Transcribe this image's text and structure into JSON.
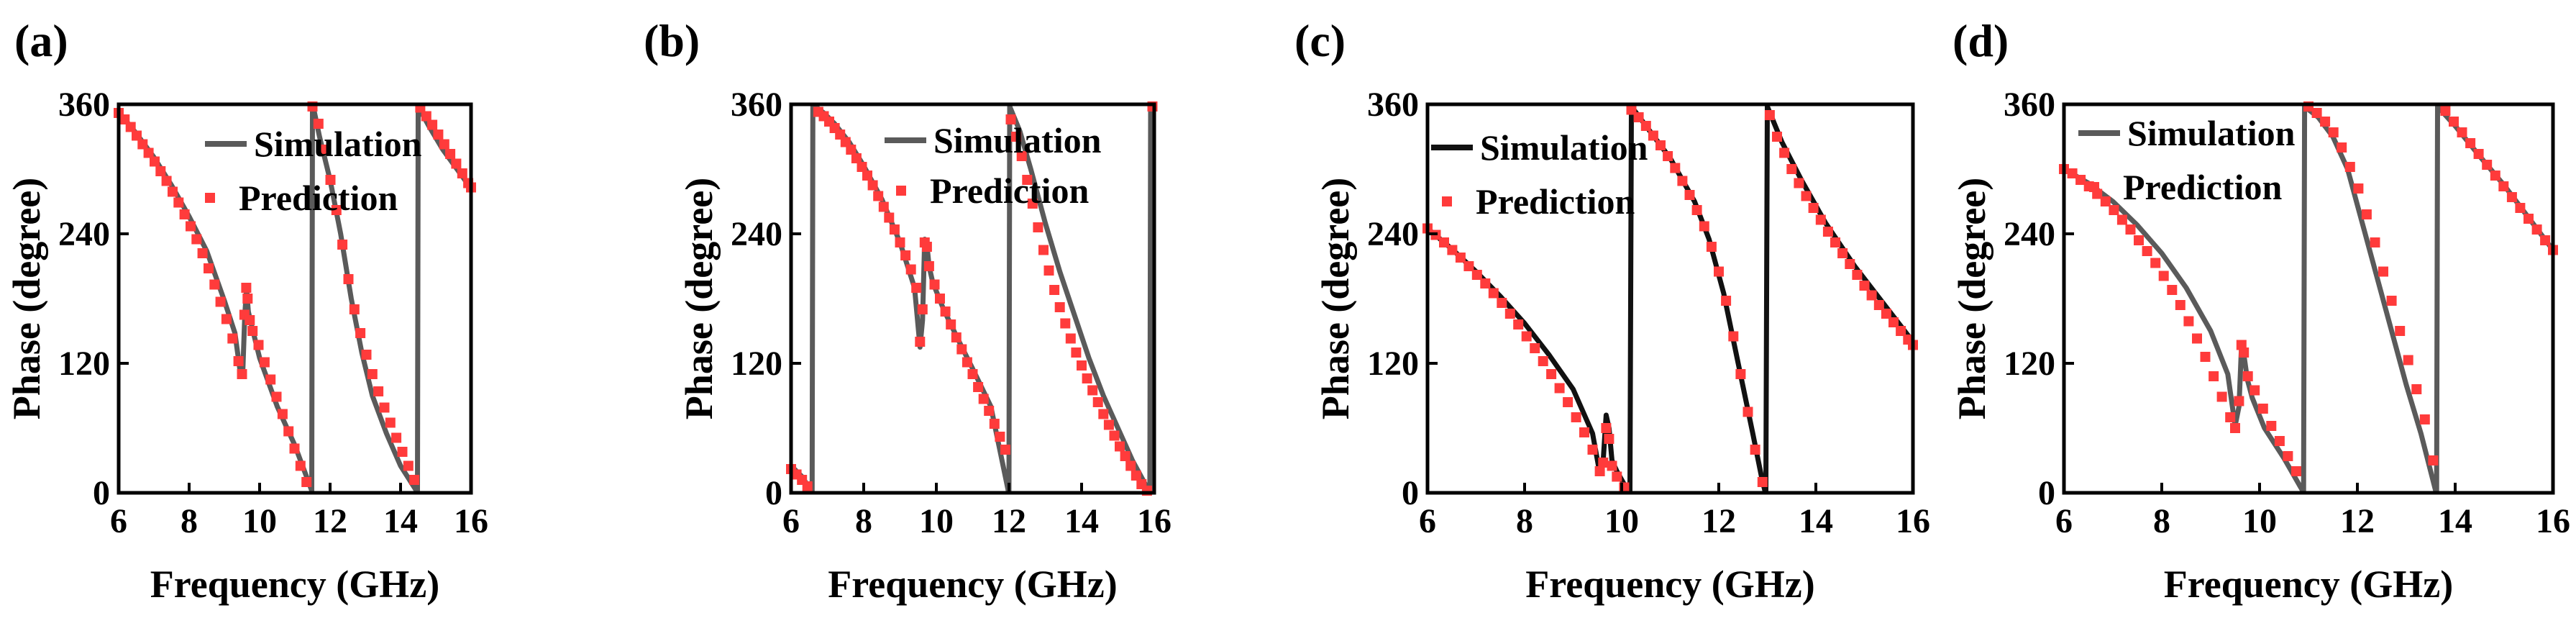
{
  "colors": {
    "simulation": "#5a5a5a",
    "simulation_c": "#111111",
    "prediction": "#ff3b3b"
  },
  "chart_data": [
    {
      "type": "line",
      "panel_label": "(a)",
      "xlabel": "Frequency (GHz)",
      "ylabel": "Phase (degree)",
      "xlim": [
        6,
        16
      ],
      "ylim": [
        0,
        360
      ],
      "xticks": [
        6,
        8,
        10,
        12,
        14,
        16
      ],
      "yticks": [
        0,
        120,
        240,
        360
      ],
      "legend": [
        "Simulation",
        "Prediction"
      ],
      "series": [
        {
          "name": "Simulation",
          "x": [
            6.0,
            6.5,
            7.0,
            7.5,
            8.0,
            8.5,
            9.0,
            9.3,
            9.45,
            9.52,
            9.58,
            9.63,
            9.68,
            9.75,
            9.85,
            10.0,
            10.5,
            11.0,
            11.48,
            11.5,
            11.52,
            11.7,
            12.0,
            12.3,
            12.6,
            12.9,
            13.2,
            13.6,
            14.0,
            14.45,
            14.48,
            14.5,
            14.8,
            15.2,
            15.6,
            16.0
          ],
          "y": [
            353,
            333,
            311,
            285,
            256,
            224,
            178,
            148,
            112,
            110,
            165,
            190,
            168,
            158,
            145,
            125,
            80,
            44,
            2,
            360,
            358,
            330,
            290,
            240,
            180,
            130,
            90,
            55,
            25,
            2,
            2,
            358,
            340,
            318,
            300,
            282
          ]
        },
        {
          "name": "Prediction",
          "x": [
            6.0,
            6.17,
            6.34,
            6.51,
            6.68,
            6.85,
            7.02,
            7.19,
            7.36,
            7.53,
            7.7,
            7.87,
            8.04,
            8.21,
            8.38,
            8.55,
            8.72,
            8.89,
            9.06,
            9.23,
            9.4,
            9.5,
            9.57,
            9.62,
            9.66,
            9.72,
            9.8,
            9.97,
            10.14,
            10.31,
            10.48,
            10.65,
            10.82,
            10.99,
            11.16,
            11.33,
            11.5,
            11.67,
            11.84,
            12.01,
            12.18,
            12.35,
            12.52,
            12.69,
            12.86,
            13.03,
            13.2,
            13.37,
            13.54,
            13.71,
            13.88,
            14.05,
            14.22,
            14.39,
            14.56,
            14.73,
            14.9,
            15.07,
            15.24,
            15.41,
            15.58,
            15.75,
            15.92,
            16.0
          ],
          "y": [
            352,
            346,
            339,
            331,
            323,
            315,
            307,
            298,
            289,
            279,
            269,
            258,
            247,
            235,
            222,
            208,
            193,
            177,
            161,
            143,
            122,
            110,
            165,
            190,
            180,
            160,
            150,
            137,
            121,
            105,
            89,
            73,
            57,
            41,
            25,
            10,
            358,
            342,
            318,
            290,
            262,
            230,
            198,
            170,
            148,
            128,
            110,
            94,
            79,
            65,
            51,
            38,
            25,
            12,
            357,
            349,
            341,
            332,
            323,
            314,
            305,
            296,
            287,
            283
          ]
        }
      ]
    },
    {
      "type": "line",
      "panel_label": "(b)",
      "xlabel": "Frequency (GHz)",
      "ylabel": "Phase (degree)",
      "xlim": [
        6,
        16
      ],
      "ylim": [
        0,
        360
      ],
      "xticks": [
        6,
        8,
        10,
        12,
        14,
        16
      ],
      "yticks": [
        0,
        120,
        240,
        360
      ],
      "legend": [
        "Simulation",
        "Prediction"
      ],
      "series": [
        {
          "name": "Simulation",
          "x": [
            6.0,
            6.3,
            6.55,
            6.58,
            6.6,
            6.9,
            7.2,
            7.6,
            8.0,
            8.5,
            9.0,
            9.4,
            9.55,
            9.62,
            9.68,
            9.74,
            9.8,
            9.9,
            10.2,
            10.6,
            11.0,
            11.5,
            11.98,
            12.0,
            12.02,
            12.3,
            12.6,
            13.0,
            13.4,
            13.8,
            14.2,
            14.6,
            15.0,
            15.4,
            15.85,
            15.88,
            15.9,
            16.0
          ],
          "y": [
            25,
            15,
            2,
            2,
            360,
            352,
            342,
            325,
            303,
            272,
            232,
            190,
            135,
            160,
            235,
            230,
            210,
            195,
            170,
            142,
            115,
            80,
            2,
            2,
            358,
            335,
            300,
            250,
            205,
            165,
            125,
            90,
            60,
            30,
            2,
            2,
            358,
            354
          ]
        },
        {
          "name": "Prediction",
          "x": [
            6.0,
            6.15,
            6.3,
            6.45,
            6.75,
            6.9,
            7.05,
            7.2,
            7.35,
            7.5,
            7.65,
            7.8,
            7.95,
            8.1,
            8.25,
            8.4,
            8.55,
            8.7,
            8.85,
            9.0,
            9.15,
            9.3,
            9.45,
            9.55,
            9.62,
            9.68,
            9.74,
            9.8,
            9.95,
            10.1,
            10.25,
            10.4,
            10.55,
            10.7,
            10.85,
            11.0,
            11.15,
            11.3,
            11.45,
            11.6,
            11.75,
            11.9,
            12.05,
            12.2,
            12.35,
            12.5,
            12.65,
            12.8,
            12.95,
            13.1,
            13.25,
            13.4,
            13.55,
            13.7,
            13.85,
            14.0,
            14.15,
            14.3,
            14.45,
            14.6,
            14.75,
            14.9,
            15.05,
            15.2,
            15.35,
            15.5,
            15.65,
            15.8,
            15.95
          ],
          "y": [
            22,
            17,
            12,
            6,
            353,
            349,
            344,
            338,
            332,
            325,
            318,
            310,
            302,
            294,
            285,
            275,
            265,
            255,
            244,
            232,
            220,
            207,
            190,
            140,
            170,
            232,
            228,
            210,
            193,
            180,
            168,
            156,
            144,
            133,
            121,
            110,
            98,
            87,
            76,
            64,
            52,
            40,
            346,
            330,
            312,
            290,
            268,
            246,
            225,
            206,
            188,
            172,
            157,
            143,
            130,
            118,
            106,
            95,
            84,
            73,
            63,
            53,
            43,
            34,
            25,
            16,
            8,
            2,
            358
          ]
        }
      ]
    },
    {
      "type": "line",
      "panel_label": "(c)",
      "xlabel": "Frequency (GHz)",
      "ylabel": "Phase (degree)",
      "xlim": [
        6,
        16
      ],
      "ylim": [
        0,
        360
      ],
      "xticks": [
        6,
        8,
        10,
        12,
        14,
        16
      ],
      "yticks": [
        0,
        120,
        240,
        360
      ],
      "legend": [
        "Simulation",
        "Prediction"
      ],
      "series": [
        {
          "name": "Simulation",
          "x": [
            6.0,
            6.5,
            7.0,
            7.5,
            8.0,
            8.5,
            9.0,
            9.4,
            9.55,
            9.62,
            9.68,
            9.74,
            9.8,
            9.9,
            10.05,
            10.15,
            10.17,
            10.2,
            10.5,
            11.0,
            11.5,
            11.8,
            12.1,
            12.4,
            12.7,
            12.88,
            12.95,
            12.97,
            13.0,
            13.3,
            13.7,
            14.2,
            14.8,
            15.4,
            16.0
          ],
          "y": [
            245,
            226,
            205,
            182,
            157,
            128,
            96,
            55,
            18,
            30,
            72,
            60,
            30,
            20,
            8,
            2,
            2,
            358,
            340,
            310,
            270,
            235,
            185,
            120,
            55,
            15,
            2,
            2,
            358,
            325,
            290,
            250,
            210,
            175,
            140
          ]
        },
        {
          "name": "Prediction",
          "x": [
            6.0,
            6.17,
            6.34,
            6.51,
            6.68,
            6.85,
            7.02,
            7.19,
            7.36,
            7.53,
            7.7,
            7.87,
            8.04,
            8.21,
            8.38,
            8.55,
            8.72,
            8.89,
            9.06,
            9.23,
            9.4,
            9.55,
            9.62,
            9.68,
            9.74,
            9.8,
            9.9,
            10.05,
            10.2,
            10.35,
            10.5,
            10.65,
            10.8,
            10.95,
            11.1,
            11.25,
            11.4,
            11.55,
            11.7,
            11.85,
            12.0,
            12.15,
            12.3,
            12.45,
            12.6,
            12.75,
            12.9,
            13.05,
            13.2,
            13.35,
            13.5,
            13.65,
            13.8,
            13.95,
            14.1,
            14.25,
            14.4,
            14.55,
            14.7,
            14.85,
            15.0,
            15.15,
            15.3,
            15.45,
            15.6,
            15.75,
            15.9,
            16.0
          ],
          "y": [
            245,
            239,
            232,
            225,
            218,
            210,
            202,
            194,
            185,
            176,
            166,
            156,
            145,
            134,
            122,
            110,
            97,
            84,
            70,
            56,
            40,
            20,
            28,
            60,
            50,
            25,
            15,
            5,
            355,
            348,
            340,
            331,
            322,
            312,
            301,
            289,
            276,
            262,
            247,
            228,
            205,
            178,
            145,
            110,
            75,
            40,
            10,
            350,
            330,
            315,
            300,
            287,
            275,
            264,
            253,
            242,
            232,
            222,
            212,
            202,
            192,
            183,
            174,
            166,
            158,
            150,
            142,
            137
          ]
        }
      ]
    },
    {
      "type": "line",
      "panel_label": "(d)",
      "xlabel": "Frequency (GHz)",
      "ylabel": "Phase (degree)",
      "xlim": [
        6,
        16
      ],
      "ylim": [
        0,
        360
      ],
      "xticks": [
        6,
        8,
        10,
        12,
        14,
        16
      ],
      "yticks": [
        0,
        120,
        240,
        360
      ],
      "legend": [
        "Simulation",
        "Prediction"
      ],
      "series": [
        {
          "name": "Simulation",
          "x": [
            6.0,
            6.5,
            7.0,
            7.5,
            8.0,
            8.5,
            9.0,
            9.35,
            9.5,
            9.58,
            9.63,
            9.68,
            9.75,
            9.85,
            10.1,
            10.5,
            10.88,
            10.9,
            10.92,
            11.2,
            11.5,
            11.8,
            12.1,
            12.4,
            12.7,
            13.0,
            13.3,
            13.6,
            13.62,
            13.64,
            14.0,
            14.5,
            15.0,
            15.5,
            16.0
          ],
          "y": [
            300,
            287,
            270,
            248,
            222,
            190,
            150,
            110,
            62,
            80,
            135,
            128,
            105,
            88,
            60,
            32,
            2,
            2,
            358,
            348,
            330,
            300,
            250,
            200,
            150,
            100,
            55,
            2,
            2,
            358,
            340,
            312,
            285,
            255,
            225
          ]
        },
        {
          "name": "Prediction",
          "x": [
            6.0,
            6.17,
            6.34,
            6.51,
            6.68,
            6.85,
            7.02,
            7.19,
            7.36,
            7.53,
            7.7,
            7.87,
            8.04,
            8.21,
            8.38,
            8.55,
            8.72,
            8.89,
            9.06,
            9.23,
            9.4,
            9.5,
            9.58,
            9.63,
            9.68,
            9.76,
            9.9,
            10.07,
            10.24,
            10.41,
            10.58,
            10.75,
            11.0,
            11.17,
            11.34,
            11.51,
            11.68,
            11.85,
            12.02,
            12.19,
            12.36,
            12.53,
            12.7,
            12.87,
            13.04,
            13.21,
            13.38,
            13.55,
            13.8,
            13.97,
            14.14,
            14.31,
            14.48,
            14.65,
            14.82,
            14.99,
            15.16,
            15.33,
            15.5,
            15.67,
            15.84,
            16.0
          ],
          "y": [
            300,
            296,
            290,
            284,
            277,
            270,
            262,
            253,
            244,
            234,
            224,
            213,
            201,
            188,
            174,
            159,
            143,
            126,
            108,
            89,
            70,
            60,
            85,
            137,
            130,
            108,
            95,
            78,
            62,
            48,
            34,
            20,
            358,
            352,
            344,
            334,
            320,
            302,
            282,
            258,
            232,
            205,
            178,
            150,
            123,
            96,
            68,
            30,
            354,
            344,
            334,
            324,
            314,
            304,
            294,
            284,
            274,
            264,
            254,
            244,
            234,
            225
          ]
        }
      ]
    }
  ]
}
